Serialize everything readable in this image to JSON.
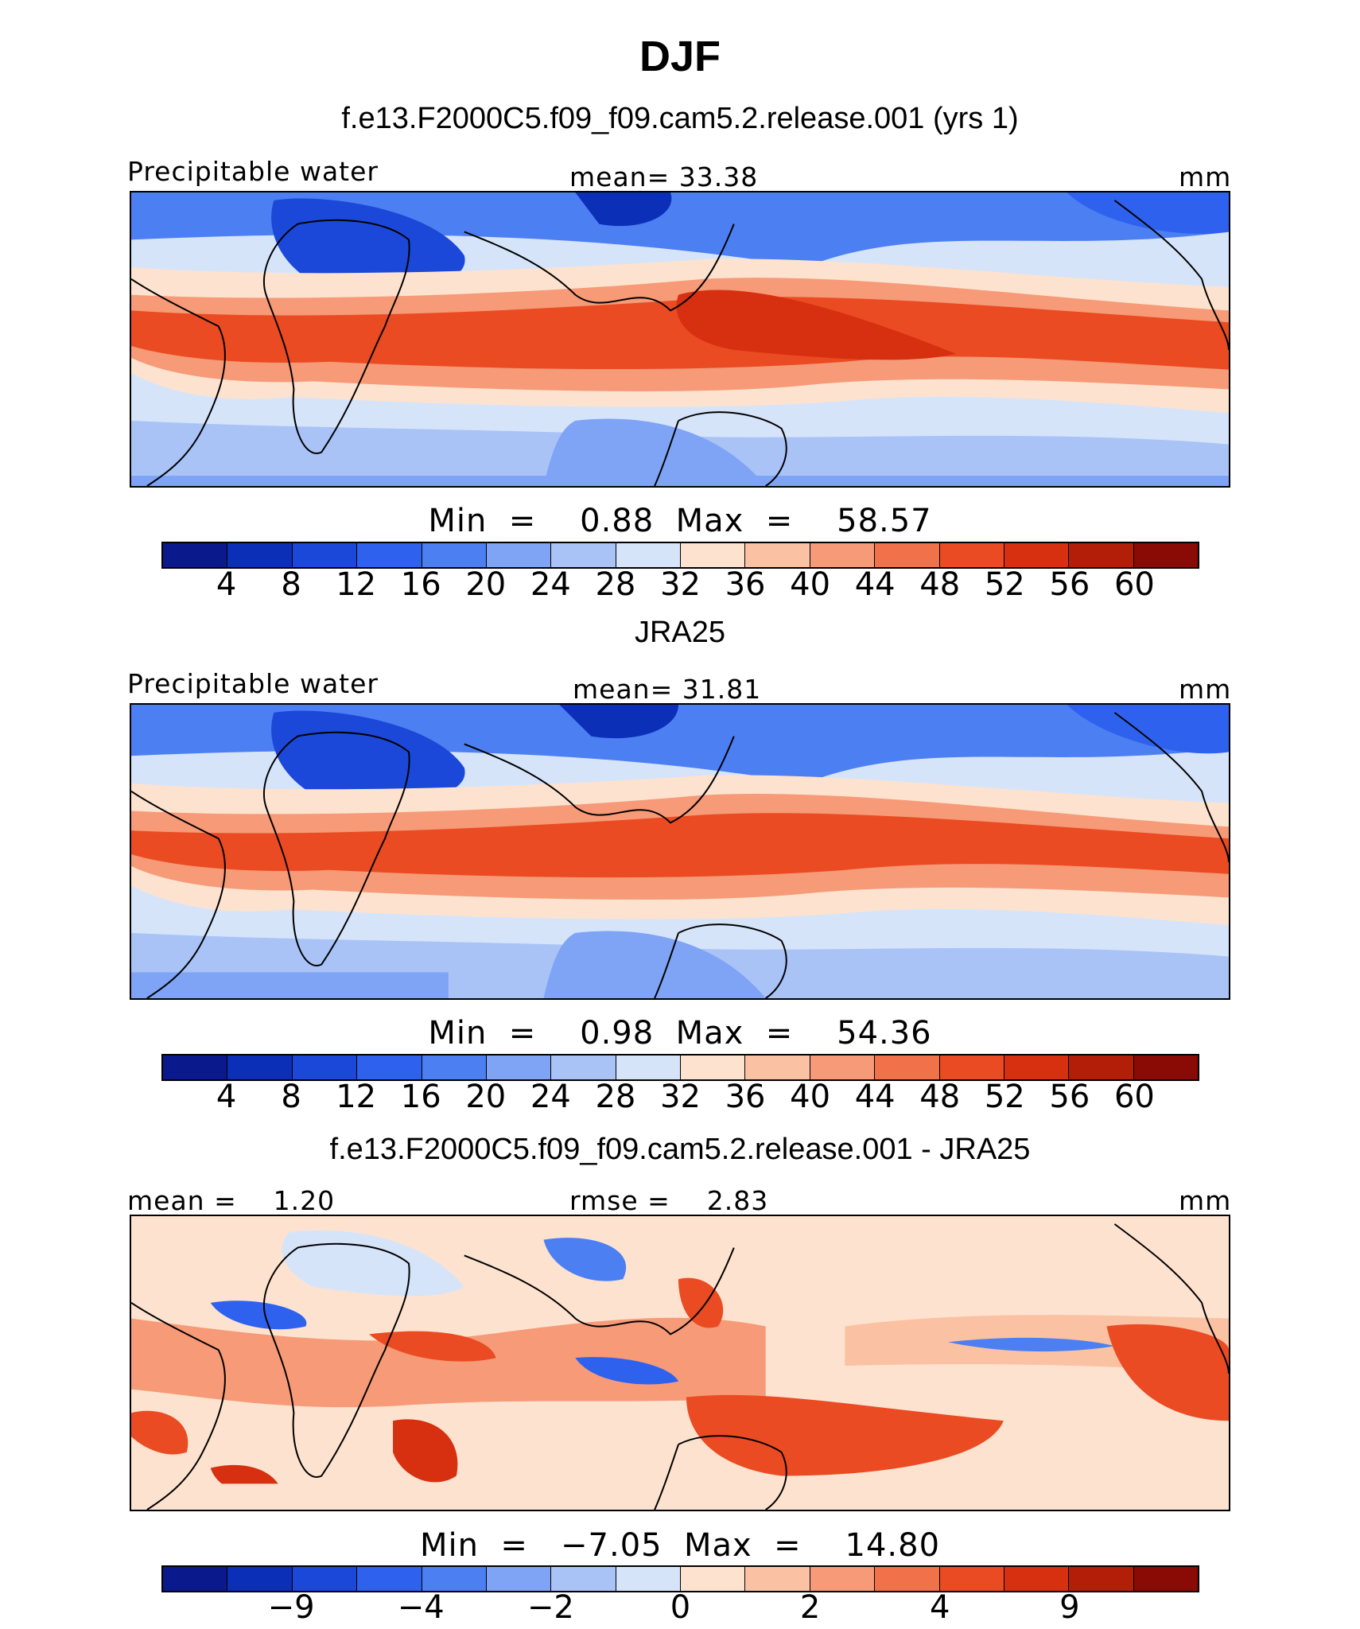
{
  "title": "DJF",
  "panels": [
    {
      "id": "model",
      "title": "f.e13.F2000C5.f09_f09.cam5.2.release.001 (yrs 1)",
      "left_label": "Precipitable water",
      "center_label": "mean=   33.38",
      "right_label": "mm",
      "minmax": "Min  =    0.88  Max  =    58.57",
      "colorbar": {
        "colors": [
          "#0a1a8c",
          "#0c2fb8",
          "#1b48d8",
          "#2e62ee",
          "#4c7ff2",
          "#7fa3f5",
          "#a9c3f7",
          "#d6e4fa",
          "#fde2cf",
          "#fac1a3",
          "#f69a77",
          "#f1714b",
          "#ea4b22",
          "#d73010",
          "#b21e08",
          "#8a0a05"
        ],
        "ticks": [
          "4",
          "8",
          "12",
          "16",
          "20",
          "24",
          "28",
          "32",
          "36",
          "40",
          "44",
          "48",
          "52",
          "56",
          "60"
        ]
      }
    },
    {
      "id": "obs",
      "title": "JRA25",
      "left_label": "Precipitable water",
      "center_label": "mean=   31.81",
      "right_label": "mm",
      "minmax": "Min  =    0.98  Max  =    54.36",
      "colorbar": {
        "colors": [
          "#0a1a8c",
          "#0c2fb8",
          "#1b48d8",
          "#2e62ee",
          "#4c7ff2",
          "#7fa3f5",
          "#a9c3f7",
          "#d6e4fa",
          "#fde2cf",
          "#fac1a3",
          "#f69a77",
          "#f1714b",
          "#ea4b22",
          "#d73010",
          "#b21e08",
          "#8a0a05"
        ],
        "ticks": [
          "4",
          "8",
          "12",
          "16",
          "20",
          "24",
          "28",
          "32",
          "36",
          "40",
          "44",
          "48",
          "52",
          "56",
          "60"
        ]
      }
    },
    {
      "id": "diff",
      "title": "f.e13.F2000C5.f09_f09.cam5.2.release.001 - JRA25",
      "left_label": "mean =    1.20",
      "center_label": "rmse =    2.83",
      "right_label": "mm",
      "minmax": "Min  =   −7.05  Max  =    14.80",
      "colorbar": {
        "colors": [
          "#0a1a8c",
          "#0c2fb8",
          "#1b48d8",
          "#2e62ee",
          "#4c7ff2",
          "#7fa3f5",
          "#a9c3f7",
          "#d6e4fa",
          "#fde2cf",
          "#fac1a3",
          "#f69a77",
          "#f1714b",
          "#ea4b22",
          "#d73010",
          "#b21e08",
          "#8a0a05"
        ],
        "ticks": [
          "−9",
          "−4",
          "−2",
          "0",
          "2",
          "4",
          "9"
        ]
      }
    }
  ]
}
